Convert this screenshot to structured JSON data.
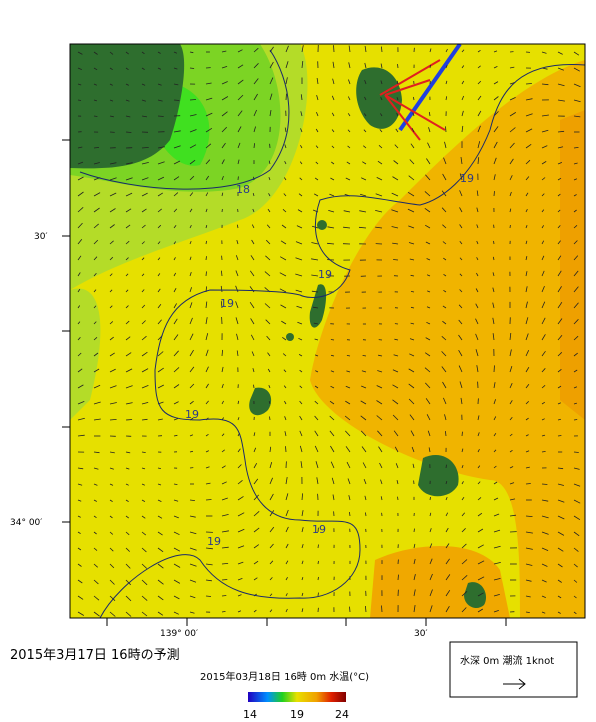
{
  "title": "2015年3月17日 16時の予測",
  "colorbar": {
    "caption": "2015年03月18日 16時 0m 水温(°C)",
    "ticks": [
      14,
      19,
      24
    ]
  },
  "axes": {
    "y_labels": [
      "30′",
      "34° 00′"
    ],
    "x_labels": [
      "139° 00′",
      "30′"
    ]
  },
  "legend": "水深 0m 潮流 1knot",
  "contour_labels": [
    18,
    19,
    19,
    19,
    19,
    19,
    19
  ]
}
